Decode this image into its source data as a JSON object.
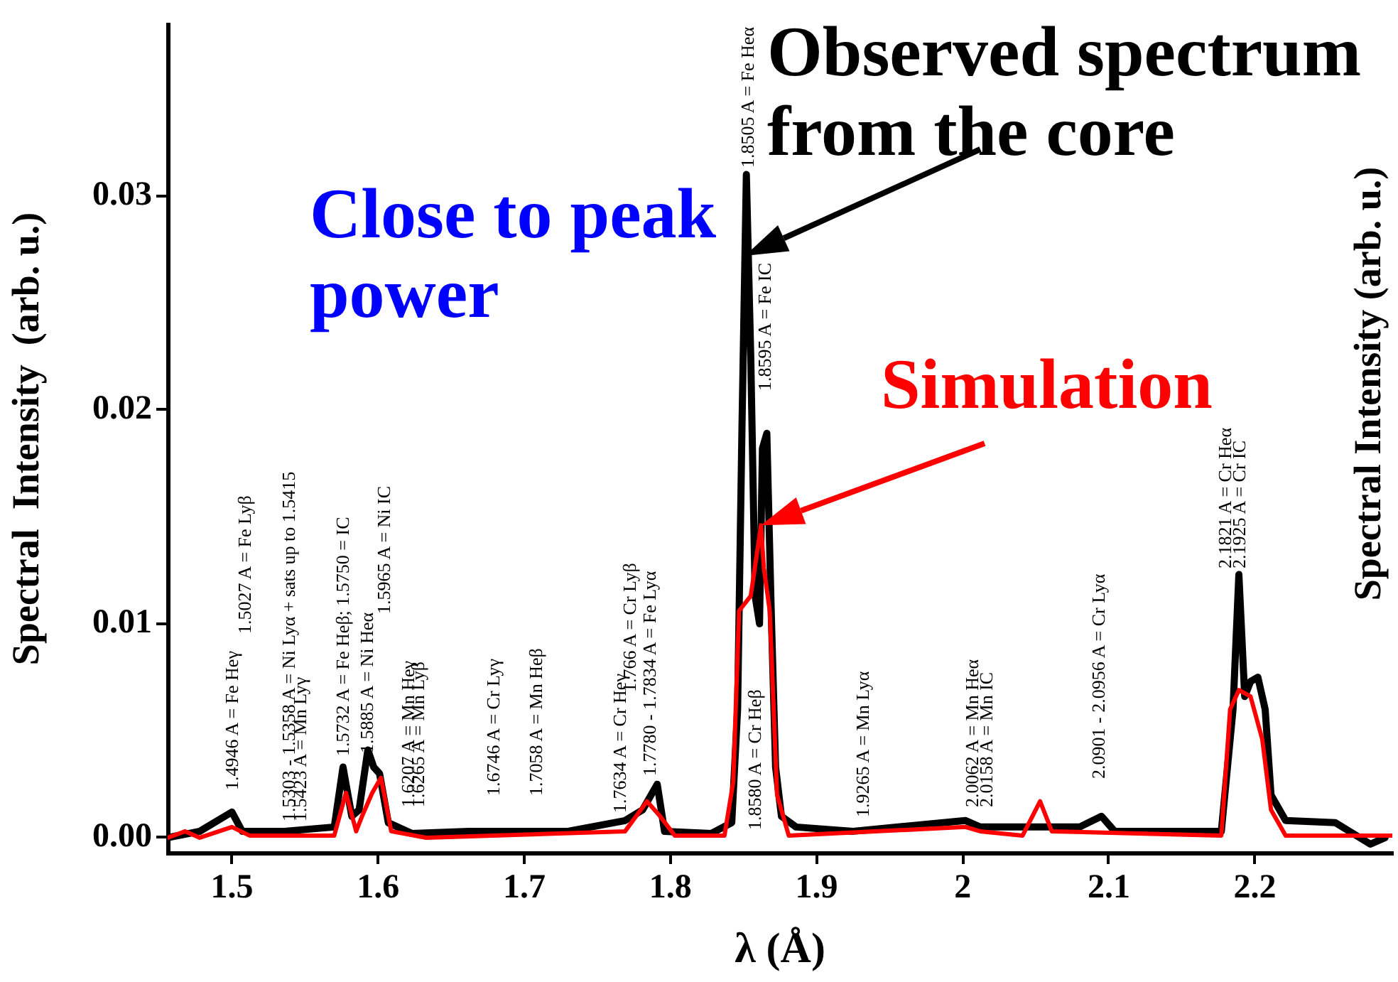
{
  "chart_data": {
    "type": "line",
    "xlabel": "λ (Å)",
    "ylabel": "Spectral  Intensity  (arb. u.)",
    "xlim": [
      1.456,
      2.294
    ],
    "ylim": [
      -0.0007,
      0.038
    ],
    "xticks": [
      1.5,
      1.6,
      1.7,
      1.8,
      1.9,
      2.0,
      2.1,
      2.2
    ],
    "yticks": [
      {
        "value": 0,
        "label": "0.00"
      },
      {
        "value": 0.01,
        "label": "0.01"
      },
      {
        "value": 0.02,
        "label": "0.02"
      },
      {
        "value": 0.03,
        "label": "0.03"
      }
    ],
    "grid": false,
    "legend": false,
    "marker": "none",
    "line_style": "solid",
    "series": [
      {
        "color": "#000000",
        "x": [
          1.456,
          1.478,
          1.5,
          1.507,
          1.536,
          1.57,
          1.576,
          1.582,
          1.587,
          1.593,
          1.597,
          1.601,
          1.607,
          1.623,
          1.662,
          1.73,
          1.769,
          1.781,
          1.791,
          1.796,
          1.828,
          1.842,
          1.846,
          1.849,
          1.852,
          1.855,
          1.858,
          1.861,
          1.863,
          1.866,
          1.869,
          1.872,
          1.876,
          1.886,
          1.925,
          2.002,
          2.012,
          2.08,
          2.095,
          2.104,
          2.177,
          2.185,
          2.189,
          2.193,
          2.197,
          2.202,
          2.207,
          2.211,
          2.221,
          2.255,
          2.279,
          2.289
        ],
        "values": [
          0.0,
          0.0003,
          0.0012,
          0.0003,
          0.0003,
          0.0005,
          0.0033,
          0.001,
          0.0013,
          0.0041,
          0.0033,
          0.003,
          0.0007,
          0.0002,
          0.0003,
          0.0003,
          0.0008,
          0.0013,
          0.0025,
          0.0003,
          0.0002,
          0.0007,
          0.006,
          0.0192,
          0.031,
          0.0225,
          0.0113,
          0.01,
          0.0182,
          0.0189,
          0.0106,
          0.0033,
          0.001,
          0.0005,
          0.0003,
          0.0008,
          0.0005,
          0.0005,
          0.001,
          0.0003,
          0.0003,
          0.006,
          0.0123,
          0.0066,
          0.0073,
          0.0075,
          0.006,
          0.002,
          0.0008,
          0.0007,
          -0.0003,
          0.0
        ]
      },
      {
        "color": "#ff0000",
        "x": [
          1.456,
          1.468,
          1.478,
          1.5,
          1.512,
          1.57,
          1.578,
          1.585,
          1.589,
          1.596,
          1.602,
          1.609,
          1.633,
          1.769,
          1.784,
          1.793,
          1.803,
          1.837,
          1.843,
          1.847,
          1.855,
          1.862,
          1.864,
          1.868,
          1.873,
          1.881,
          2.002,
          2.012,
          2.041,
          2.053,
          2.061,
          2.177,
          2.183,
          2.189,
          2.197,
          2.205,
          2.211,
          2.221,
          2.294
        ],
        "values": [
          0.0,
          0.0003,
          0.0,
          0.0005,
          0.0001,
          0.0001,
          0.0021,
          0.0003,
          0.001,
          0.0021,
          0.0028,
          0.0003,
          0.0,
          0.0003,
          0.0017,
          0.001,
          0.0001,
          0.0001,
          0.0026,
          0.0106,
          0.0113,
          0.0146,
          0.0126,
          0.0106,
          0.002,
          0.0001,
          0.0005,
          0.0003,
          0.0001,
          0.0017,
          0.0003,
          0.0001,
          0.006,
          0.0069,
          0.0066,
          0.0046,
          0.0013,
          0.0001,
          0.0001
        ]
      }
    ],
    "annotations": [
      "1.4946 A = Fe Heγ",
      "1.5027 A = Fe Lyβ",
      "1.5303 - 1.5358 A = Ni Lyα + sats up to 1.5415",
      "1.5423 A = Mn Lyγ",
      "1.5732 A = Fe Heβ; 1.5750 = IC",
      "1.5885 A = Ni Heα",
      "1.5965 A = Ni IC",
      "1.6207 A = Mn Heγ",
      "1.6265 A = Mn Lyβ",
      "1.6746 A = Cr Lyγ",
      "1.7058 A = Mn Heβ",
      "1.7634 A = Cr Heγ",
      "1.766 A = Cr Lyβ",
      "1.7780 - 1.7834 A = Fe Lyα",
      "1.8505 A = Fe Heα",
      "1.8595 A = Fe IC",
      "1.8580 A = Cr Heβ",
      "1.9265 A = Mn Lyα",
      "2.0062 A = Mn Heα",
      "2.0158 A = Mn IC",
      "2.0901 - 2.0956 A = Cr Lyα",
      "2.1821 A = Cr Heα",
      "2.1925 A = Cr IC",
      {
        "text": "Observed spectrum from the core",
        "x": 1.851,
        "y": 0.0272
      },
      {
        "text": "Simulation",
        "x": 1.862,
        "y": 0.0146
      },
      "Close to peak power",
      "Spectral  Intensity  (arb. u.)"
    ]
  }
}
